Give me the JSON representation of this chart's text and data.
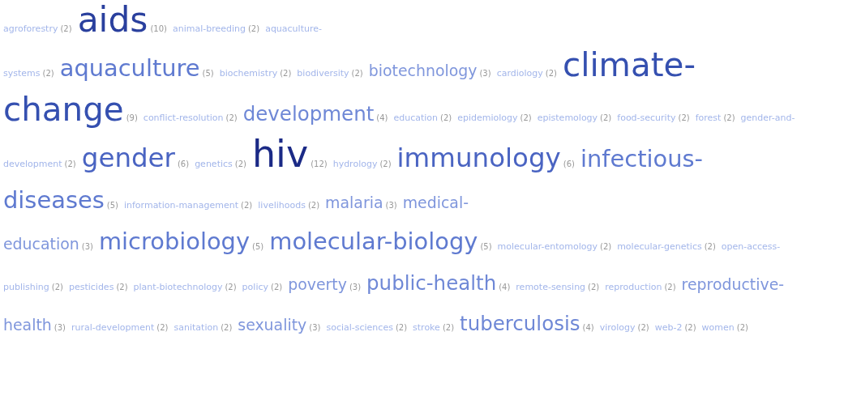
{
  "chart_data": {
    "type": "other",
    "value_labels": [
      "(2)",
      "(10)",
      "(2)",
      "(2)",
      "(5)",
      "(2)",
      "(2)",
      "(3)",
      "(2)",
      "(9)",
      "(2)",
      "(4)",
      "(2)",
      "(2)",
      "(2)",
      "(2)",
      "(2)",
      "(2)",
      "(6)",
      "(2)",
      "(12)",
      "(2)",
      "(6)",
      "(5)",
      "(2)",
      "(2)",
      "(3)",
      "(3)",
      "(5)",
      "(5)",
      "(2)",
      "(2)",
      "(2)",
      "(2)",
      "(2)",
      "(2)",
      "(3)",
      "(4)",
      "(2)",
      "(2)",
      "(3)",
      "(2)",
      "(2)",
      "(3)",
      "(2)",
      "(2)",
      "(4)",
      "(2)",
      "(2)",
      "(2)"
    ],
    "categories": [
      "agroforestry",
      "aids",
      "animal-breeding",
      "aquaculture-systems",
      "aquaculture",
      "biochemistry",
      "biodiversity",
      "biotechnology",
      "cardiology",
      "climate-change",
      "conflict-resolution",
      "development",
      "education",
      "epidemiology",
      "epistemology",
      "food-security",
      "forest",
      "gender-and-development",
      "gender",
      "genetics",
      "hiv",
      "hydrology",
      "immunology",
      "infectious-diseases",
      "information-management",
      "livelihoods",
      "malaria",
      "medical-education",
      "microbiology",
      "molecular-biology",
      "molecular-entomology",
      "molecular-genetics",
      "open-access-publishing",
      "pesticides",
      "plant-biotechnology",
      "policy",
      "poverty",
      "public-health",
      "remote-sensing",
      "reproduction",
      "reproductive-health",
      "rural-development",
      "sanitation",
      "sexuality",
      "social-sciences",
      "stroke",
      "tuberculosis",
      "virology",
      "web-2",
      "women"
    ],
    "values": [
      2,
      10,
      2,
      2,
      5,
      2,
      2,
      3,
      2,
      9,
      2,
      4,
      2,
      2,
      2,
      2,
      2,
      2,
      6,
      2,
      12,
      2,
      6,
      5,
      2,
      2,
      3,
      3,
      5,
      5,
      2,
      2,
      2,
      2,
      2,
      2,
      3,
      4,
      2,
      2,
      3,
      2,
      2,
      3,
      2,
      2,
      4,
      2,
      2,
      2
    ],
    "colors": [
      "#a3b6ea",
      "#2a409e",
      "#a3b6ea",
      "#a3b6ea",
      "#5f7ad0",
      "#a3b6ea",
      "#a3b6ea",
      "#7f96dc",
      "#a3b6ea",
      "#3550b0",
      "#a3b6ea",
      "#6f88d6",
      "#a3b6ea",
      "#a3b6ea",
      "#a3b6ea",
      "#a3b6ea",
      "#a3b6ea",
      "#a3b6ea",
      "#4a64c2",
      "#a3b6ea",
      "#1b2a86",
      "#a3b6ea",
      "#4a64c2",
      "#5f7ad0",
      "#a3b6ea",
      "#a3b6ea",
      "#7f96dc",
      "#7f96dc",
      "#5f7ad0",
      "#5f7ad0",
      "#a3b6ea",
      "#a3b6ea",
      "#a3b6ea",
      "#a3b6ea",
      "#a3b6ea",
      "#a3b6ea",
      "#7f96dc",
      "#6f88d6",
      "#a3b6ea",
      "#a3b6ea",
      "#7f96dc",
      "#a3b6ea",
      "#a3b6ea",
      "#7f96dc",
      "#a3b6ea",
      "#a3b6ea",
      "#6f88d6",
      "#a3b6ea",
      "#a3b6ea",
      "#a3b6ea"
    ]
  }
}
